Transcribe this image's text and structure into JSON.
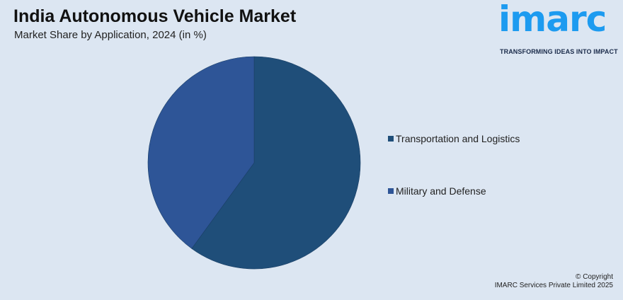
{
  "header": {
    "title": "India Autonomous Vehicle Market",
    "subtitle": "Market Share by Application, 2024 (in %)"
  },
  "logo": {
    "wordmark": "imarc",
    "tagline": "TRANSFORMING IDEAS INTO IMPACT",
    "color": "#1d9bf0"
  },
  "chart_data": {
    "type": "pie",
    "title": "India Autonomous Vehicle Market",
    "subtitle": "Market Share by Application, 2024 (in %)",
    "categories": [
      "Transportation and Logistics",
      "Military and Defense"
    ],
    "values": [
      60,
      40
    ],
    "colors": [
      "#1f4e79",
      "#2e5597"
    ],
    "legend_position": "right",
    "start_angle": "top",
    "direction": "clockwise",
    "data_labels": false
  },
  "legend": {
    "items": [
      {
        "label": "Transportation and Logistics",
        "color": "#1f4e79"
      },
      {
        "label": "Military and Defense",
        "color": "#2e5597"
      }
    ]
  },
  "footer": {
    "copyright_line1": "© Copyright",
    "copyright_line2": "IMARC Services Private Limited 2025"
  }
}
